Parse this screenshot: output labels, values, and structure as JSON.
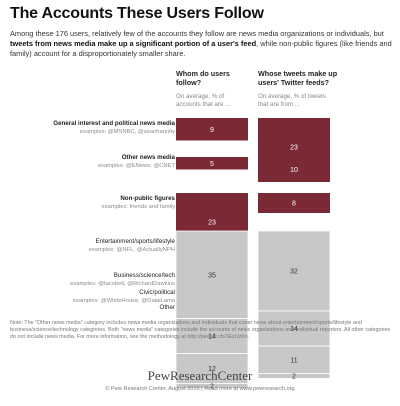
{
  "title": "The Accounts These Users Follow",
  "intro": {
    "part1": "Among these 176 users, relatively few of the accounts they follow are news media organizations or individuals, but ",
    "bold": "tweets from news media make up a significant portion of a user's feed",
    "part2": ", while non-public figures (like friends and family) account for a disproportionately smaller share."
  },
  "columns": [
    {
      "heading": "Whom do users follow?",
      "sub": "On average, % of accounts that are ..."
    },
    {
      "heading": "Whose tweets make up users' Twitter feeds?",
      "sub": "On average, % of tweets that are from ..."
    }
  ],
  "categories": [
    {
      "label": "General interest and political news media",
      "examples": "examples: @MSNBC, @seanhannity",
      "bold": true
    },
    {
      "label": "Other news media",
      "examples": "examples: @ENews, @CNET",
      "bold": true
    },
    {
      "label": "Non-public figures",
      "examples": "examples: friends and family",
      "bold": true
    },
    {
      "label": "Entertainment/sports/lifestyle",
      "examples": "examples: @NFL, @ActuallyNPH",
      "bold": false
    },
    {
      "label": "Business/science/tech",
      "examples": "examples: @tacobell, @RichardDawkins",
      "bold": false
    },
    {
      "label": "Civic/political",
      "examples": "examples: @WhiteHouse, @DalaiLama",
      "bold": false
    },
    {
      "label": "Other",
      "examples": "",
      "bold": false
    }
  ],
  "chart_data": {
    "type": "bar",
    "categories": [
      "General interest and political news media",
      "Other news media",
      "Non-public figures",
      "Entertainment/sports/lifestyle",
      "Business/science/tech",
      "Civic/political",
      "Other"
    ],
    "series": [
      {
        "name": "Whom do users follow?",
        "values": [
          9,
          5,
          23,
          35,
          14,
          12,
          2
        ]
      },
      {
        "name": "Whose tweets make up users' Twitter feeds?",
        "values": [
          23,
          10,
          8,
          32,
          14,
          11,
          2
        ]
      }
    ],
    "stacked_group": [
      "Entertainment/sports/lifestyle",
      "Business/science/tech",
      "Civic/political",
      "Other"
    ],
    "colors": {
      "news": "#7b2a35",
      "other": "#c8c8c8",
      "text_light": "#ffffff",
      "text_dark": "#333333"
    }
  },
  "note": "Note: The \"Other news media\" category includes news media organizations and individuals that cover news about entertainment/sports/lifestyle and business/science/technology categories. Both \"news media\" categories include the accounts of news organizations and individual reporters. All other categories do not include news media. For more information, see the methodology at http://pewrsr.ch/1EzUzKn.",
  "logo": "PewResearchCenter",
  "footer": "© Pew Research Center, August 2015  |  Read more at www.pewresearch.org"
}
